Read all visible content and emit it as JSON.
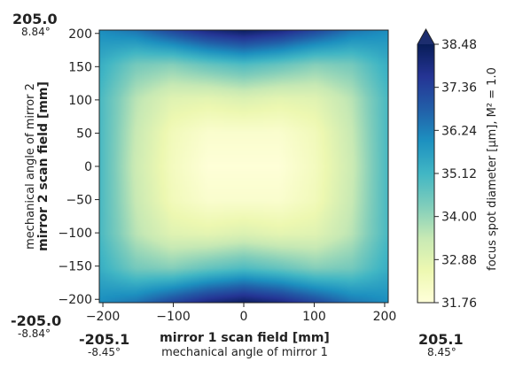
{
  "chart_data": {
    "type": "heatmap",
    "title": "",
    "xlabel": "mirror 1 scan field [mm]",
    "xlabel_secondary": "mechanical angle of mirror 1",
    "ylabel": "mirror 2 scan field [mm]",
    "ylabel_secondary": "mechanical angle of mirror 2",
    "xlim": [
      -205.1,
      205.1
    ],
    "ylim": [
      -205.0,
      205.0
    ],
    "x_ticks": [
      -200,
      -100,
      0,
      100,
      200
    ],
    "x_tick_labels": [
      "−200",
      "−100",
      "0",
      "100",
      "200"
    ],
    "y_ticks": [
      -200,
      -150,
      -100,
      -50,
      0,
      50,
      100,
      150,
      200
    ],
    "y_tick_labels": [
      "−200",
      "−150",
      "−100",
      "−50",
      "0",
      "50",
      "100",
      "150",
      "200"
    ],
    "corner_labels": {
      "y_max": "205.0",
      "y_max_angle": "8.84°",
      "y_min": "-205.0",
      "y_min_angle": "-8.84°",
      "x_min": "-205.1",
      "x_min_angle": "-8.45°",
      "x_max": "205.1",
      "x_max_angle": "8.45°"
    },
    "colorbar": {
      "label": "focus spot diameter [μm], M² = 1.0",
      "min": 31.76,
      "max": 38.48,
      "ticks": [
        31.76,
        32.88,
        34.0,
        35.12,
        36.24,
        37.36,
        38.48
      ],
      "tick_labels": [
        "31.76",
        "32.88",
        "34.00",
        "35.12",
        "36.24",
        "37.36",
        "38.48"
      ],
      "extend": "max",
      "colormap": "YlGnBu"
    },
    "field_samples": {
      "description_free": true,
      "x": [
        -205,
        -150,
        -100,
        -50,
        0,
        50,
        100,
        150,
        205
      ],
      "y": [
        205,
        150,
        100,
        50,
        0,
        -50,
        -100,
        -150,
        -205
      ],
      "z": [
        [
          36.0,
          36.4,
          37.2,
          37.9,
          38.3,
          37.9,
          37.2,
          36.4,
          36.0
        ],
        [
          35.3,
          34.4,
          34.2,
          34.6,
          34.9,
          34.6,
          34.2,
          34.4,
          35.3
        ],
        [
          35.0,
          33.6,
          32.9,
          32.8,
          33.0,
          32.8,
          32.9,
          33.6,
          35.0
        ],
        [
          35.0,
          33.4,
          32.4,
          32.0,
          32.0,
          32.0,
          32.4,
          33.4,
          35.0
        ],
        [
          35.0,
          33.3,
          32.3,
          31.8,
          31.8,
          31.8,
          32.3,
          33.3,
          35.0
        ],
        [
          35.0,
          33.4,
          32.4,
          32.0,
          32.0,
          32.0,
          32.4,
          33.4,
          35.0
        ],
        [
          35.0,
          33.6,
          32.9,
          32.8,
          33.0,
          32.8,
          32.9,
          33.6,
          35.0
        ],
        [
          35.3,
          34.4,
          34.2,
          34.6,
          34.9,
          34.6,
          34.2,
          34.4,
          35.3
        ],
        [
          36.0,
          36.4,
          37.2,
          37.9,
          38.3,
          37.9,
          37.2,
          36.4,
          36.0
        ]
      ]
    }
  }
}
